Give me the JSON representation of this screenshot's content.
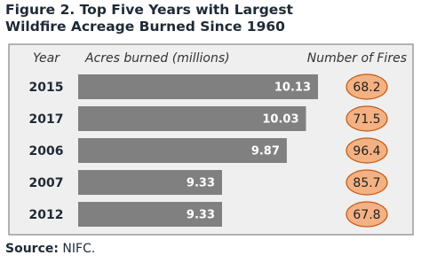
{
  "chart_data": {
    "type": "bar",
    "title": "Figure 2. Top Five Years with Largest Wildfire Acreage Burned Since 1960",
    "xlabel": "Year",
    "categories": [
      "2015",
      "2017",
      "2006",
      "2007",
      "2012"
    ],
    "series": [
      {
        "name": "Acres burned (millions)",
        "color": "#808080",
        "values": [
          10.13,
          10.03,
          9.87,
          9.33,
          9.33
        ]
      },
      {
        "name": "Number of Fires",
        "color": "#f4b183",
        "values": [
          68.2,
          71.5,
          96.4,
          85.7,
          67.8
        ]
      }
    ]
  },
  "source": {
    "label": "Source:",
    "text": "NIFC."
  }
}
